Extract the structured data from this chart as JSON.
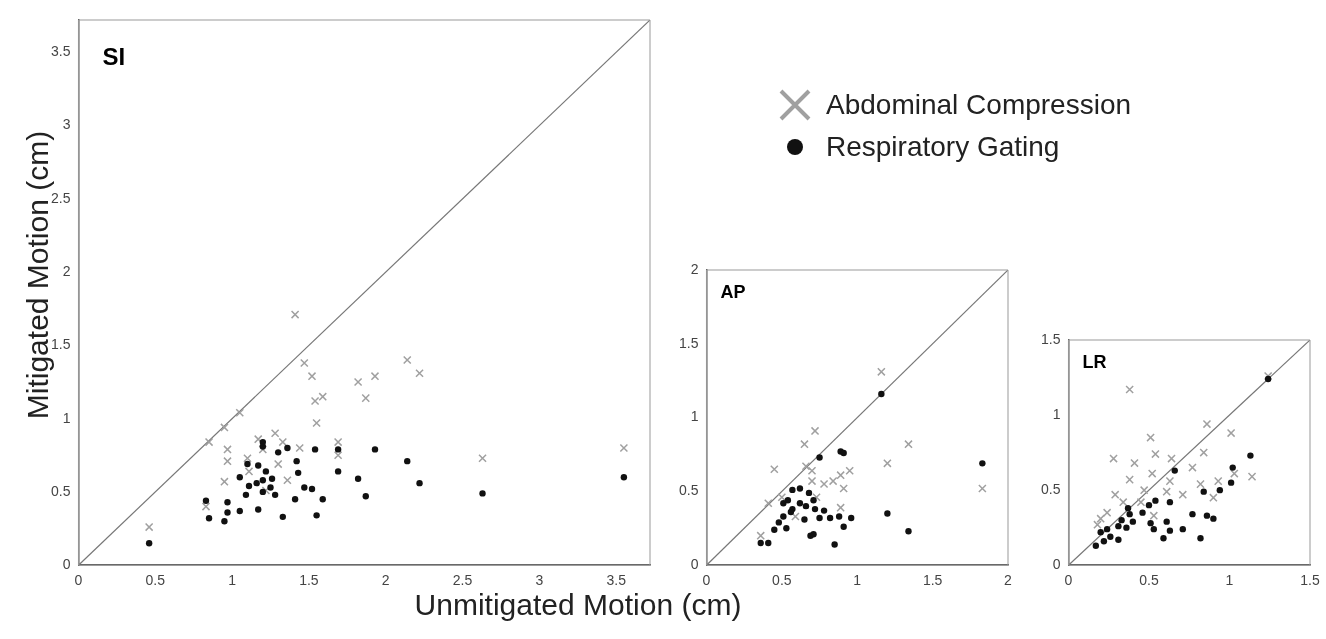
{
  "chart_data": [
    {
      "type": "scatter",
      "title": "SI",
      "ylabel": "Mitigated Motion (cm)",
      "xlim": [
        0,
        3.72
      ],
      "ylim": [
        0,
        3.72
      ],
      "xticks": [
        0,
        0.5,
        1,
        1.5,
        2,
        2.5,
        3,
        3.5
      ],
      "yticks": [
        0,
        0.5,
        1,
        1.5,
        2,
        2.5,
        3,
        3.5
      ],
      "grid": false,
      "legend": "right",
      "series": [
        {
          "type": "line",
          "color": "#777777",
          "marker": "none",
          "x": [
            0,
            3.72
          ],
          "values": [
            0,
            3.72
          ]
        },
        {
          "name": "Abdominal Compression",
          "color": "#a0a0a0",
          "marker": "cross",
          "x": [
            1.41,
            1.47,
            1.52,
            1.54,
            1.59,
            1.55,
            1.82,
            1.05,
            0.95,
            0.85,
            0.97,
            0.97,
            0.95,
            0.83,
            0.46,
            1.17,
            1.28,
            1.33,
            1.2,
            1.3,
            1.1,
            1.11,
            1.36,
            1.44,
            1.69,
            1.69,
            1.22,
            1.93,
            1.87,
            2.14,
            2.22,
            2.63,
            3.55
          ],
          "values": [
            1.71,
            1.38,
            1.29,
            1.12,
            1.15,
            0.97,
            1.25,
            1.04,
            0.94,
            0.84,
            0.79,
            0.71,
            0.57,
            0.4,
            0.26,
            0.86,
            0.9,
            0.84,
            0.79,
            0.69,
            0.73,
            0.64,
            0.58,
            0.8,
            0.84,
            0.75,
            0.51,
            1.29,
            1.14,
            1.4,
            1.31,
            0.73,
            0.8
          ]
        },
        {
          "name": "Respiratory Gating",
          "color": "#111111",
          "marker": "circle",
          "x": [
            0.46,
            0.83,
            0.85,
            0.95,
            0.97,
            0.97,
            1.05,
            1.17,
            1.09,
            1.1,
            1.17,
            1.05,
            1.11,
            1.16,
            1.2,
            1.22,
            1.26,
            1.2,
            1.25,
            1.28,
            1.2,
            1.2,
            1.3,
            1.36,
            1.42,
            1.43,
            1.47,
            1.52,
            1.41,
            1.33,
            1.55,
            1.59,
            1.54,
            1.69,
            1.69,
            1.82,
            1.93,
            1.87,
            2.14,
            2.22,
            2.63,
            3.55
          ],
          "values": [
            0.15,
            0.44,
            0.32,
            0.3,
            0.43,
            0.36,
            0.37,
            0.38,
            0.48,
            0.69,
            0.68,
            0.6,
            0.54,
            0.56,
            0.58,
            0.64,
            0.59,
            0.5,
            0.53,
            0.48,
            0.84,
            0.81,
            0.77,
            0.8,
            0.71,
            0.63,
            0.53,
            0.52,
            0.45,
            0.33,
            0.34,
            0.45,
            0.79,
            0.79,
            0.64,
            0.59,
            0.79,
            0.47,
            0.71,
            0.56,
            0.49,
            0.6
          ]
        }
      ]
    },
    {
      "type": "scatter",
      "title": "AP",
      "xlabel": "Unmitigated Motion (cm)",
      "xlim": [
        0,
        2
      ],
      "ylim": [
        0,
        2
      ],
      "xticks": [
        0,
        0.5,
        1,
        1.5,
        2
      ],
      "yticks": [
        0,
        0.5,
        1,
        1.5,
        2
      ],
      "grid": false,
      "series": [
        {
          "type": "line",
          "color": "#777777",
          "marker": "none",
          "x": [
            0,
            2
          ],
          "values": [
            0,
            2
          ]
        },
        {
          "color": "#a0a0a0",
          "marker": "cross",
          "x": [
            1.16,
            0.72,
            0.65,
            0.45,
            0.66,
            0.7,
            0.95,
            0.89,
            0.84,
            0.78,
            0.7,
            0.91,
            1.34,
            1.2,
            1.83,
            0.41,
            0.5,
            0.36,
            0.89,
            0.59,
            0.73
          ],
          "values": [
            1.31,
            0.91,
            0.82,
            0.65,
            0.67,
            0.64,
            0.64,
            0.61,
            0.57,
            0.55,
            0.57,
            0.52,
            0.82,
            0.69,
            0.52,
            0.42,
            0.46,
            0.2,
            0.39,
            0.33,
            0.46
          ]
        },
        {
          "color": "#111111",
          "marker": "circle",
          "x": [
            1.16,
            0.75,
            0.89,
            0.91,
            1.83,
            1.2,
            1.34,
            0.85,
            0.36,
            0.41,
            0.45,
            0.48,
            0.53,
            0.51,
            0.51,
            0.54,
            0.57,
            0.62,
            0.57,
            0.62,
            0.68,
            0.66,
            0.71,
            0.72,
            0.65,
            0.69,
            0.71,
            0.75,
            0.78,
            0.82,
            0.88,
            0.96,
            0.91,
            0.56
          ],
          "values": [
            1.16,
            0.73,
            0.77,
            0.76,
            0.69,
            0.35,
            0.23,
            0.14,
            0.15,
            0.15,
            0.24,
            0.29,
            0.25,
            0.33,
            0.42,
            0.44,
            0.51,
            0.52,
            0.38,
            0.42,
            0.49,
            0.4,
            0.44,
            0.38,
            0.31,
            0.2,
            0.21,
            0.32,
            0.37,
            0.32,
            0.33,
            0.32,
            0.26,
            0.36
          ]
        }
      ]
    },
    {
      "type": "scatter",
      "title": "LR",
      "xlim": [
        0,
        1.5
      ],
      "ylim": [
        0,
        1.5
      ],
      "xticks": [
        0,
        0.5,
        1,
        1.5
      ],
      "yticks": [
        0,
        0.5,
        1,
        1.5
      ],
      "grid": false,
      "series": [
        {
          "type": "line",
          "color": "#777777",
          "marker": "none",
          "x": [
            0,
            1.5
          ],
          "values": [
            0,
            1.5
          ]
        },
        {
          "color": "#a0a0a0",
          "marker": "cross",
          "x": [
            0.38,
            0.86,
            1.01,
            0.51,
            0.54,
            0.84,
            0.28,
            0.41,
            0.64,
            0.77,
            0.38,
            0.52,
            0.63,
            0.61,
            0.47,
            0.71,
            0.82,
            0.93,
            0.9,
            1.14,
            1.03,
            0.29,
            0.34,
            0.24,
            0.2,
            0.18,
            1.24,
            0.45,
            0.53
          ],
          "values": [
            1.17,
            0.94,
            0.88,
            0.85,
            0.74,
            0.75,
            0.71,
            0.68,
            0.71,
            0.65,
            0.57,
            0.61,
            0.56,
            0.49,
            0.5,
            0.47,
            0.54,
            0.56,
            0.45,
            0.59,
            0.61,
            0.47,
            0.42,
            0.35,
            0.31,
            0.27,
            1.26,
            0.42,
            0.33
          ]
        },
        {
          "color": "#111111",
          "marker": "circle",
          "x": [
            1.24,
            1.13,
            1.02,
            1.01,
            0.94,
            0.84,
            0.66,
            0.63,
            0.54,
            0.5,
            0.46,
            0.77,
            0.86,
            0.9,
            0.61,
            0.51,
            0.53,
            0.63,
            0.71,
            0.59,
            0.82,
            0.37,
            0.38,
            0.33,
            0.31,
            0.36,
            0.4,
            0.24,
            0.2,
            0.26,
            0.22,
            0.17,
            0.31
          ],
          "values": [
            1.24,
            0.73,
            0.65,
            0.55,
            0.5,
            0.49,
            0.63,
            0.42,
            0.43,
            0.4,
            0.35,
            0.34,
            0.33,
            0.31,
            0.29,
            0.28,
            0.24,
            0.23,
            0.24,
            0.18,
            0.18,
            0.38,
            0.34,
            0.3,
            0.26,
            0.25,
            0.29,
            0.24,
            0.22,
            0.19,
            0.16,
            0.13,
            0.17
          ]
        }
      ]
    }
  ]
}
